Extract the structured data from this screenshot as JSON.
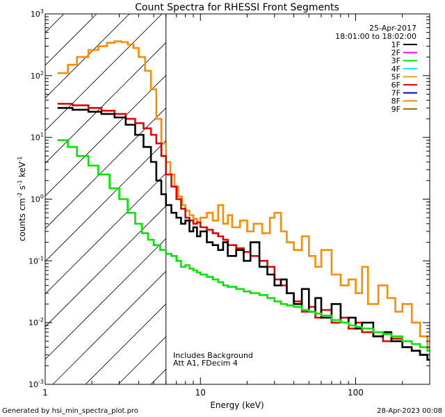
{
  "chart_data": {
    "type": "line",
    "title": "Count Spectra for RHESSI Front Segments",
    "xlabel": "Energy (keV)",
    "ylabel_parts": [
      "counts cm",
      "-2",
      " s",
      "-1",
      " keV",
      "-1"
    ],
    "xscale": "log",
    "yscale": "log",
    "xlim": [
      1,
      300
    ],
    "ylim": [
      0.001,
      1000
    ],
    "x_tick_labels": [
      {
        "value": 1,
        "label": "1"
      },
      {
        "value": 10,
        "label": "10"
      },
      {
        "value": 100,
        "label": "100"
      }
    ],
    "y_tick_labels": [
      {
        "exp": -3,
        "base": "10",
        "sup": "-3"
      },
      {
        "exp": -2,
        "base": "10",
        "sup": "-2"
      },
      {
        "exp": -1,
        "base": "10",
        "sup": "-1"
      },
      {
        "exp": 0,
        "base": "10",
        "sup": "0"
      },
      {
        "exp": 1,
        "base": "10",
        "sup": "1"
      },
      {
        "exp": 2,
        "base": "10",
        "sup": "2"
      },
      {
        "exp": 3,
        "base": "10",
        "sup": "3"
      }
    ],
    "date": "25-Apr-2017",
    "time_range": "18:01:00 to 18:02:00",
    "legend_position": "top-right",
    "legend": [
      {
        "name": "1F",
        "color": "#000000"
      },
      {
        "name": "2F",
        "color": "#ff00ff"
      },
      {
        "name": "3F",
        "color": "#00e600"
      },
      {
        "name": "4F",
        "color": "#00e5ee"
      },
      {
        "name": "5F",
        "color": "#f0a020"
      },
      {
        "name": "6F",
        "color": "#e60000"
      },
      {
        "name": "7F",
        "color": "#0000cc"
      },
      {
        "name": "8F",
        "color": "#ff8c00"
      },
      {
        "name": "9F",
        "color": "#807000"
      }
    ],
    "cutoff_energy": 6,
    "hatch_region": "energies below 6 keV",
    "annotations": [
      "Includes Background",
      "Att A1, FDecim 4"
    ],
    "series": [
      {
        "name": "8F",
        "color": "#ff8c00",
        "x": [
          1.2,
          1.4,
          1.6,
          1.9,
          2.2,
          2.5,
          2.8,
          3.1,
          3.4,
          3.7,
          4.0,
          4.4,
          4.8,
          5.2,
          5.6,
          6.0,
          6.4,
          6.8,
          7.2,
          7.6,
          8.0,
          8.5,
          9,
          9.5,
          10,
          11,
          12,
          13,
          14,
          15,
          16,
          18,
          20,
          22,
          25,
          28,
          30,
          33,
          36,
          40,
          45,
          50,
          55,
          60,
          70,
          80,
          90,
          100,
          110,
          120,
          140,
          160,
          180,
          200,
          230,
          260,
          290
        ],
        "y": [
          110,
          150,
          200,
          260,
          300,
          340,
          360,
          350,
          320,
          280,
          200,
          120,
          60,
          20,
          8,
          4.0,
          2.5,
          1.6,
          1.1,
          0.8,
          0.65,
          0.55,
          0.48,
          0.42,
          0.5,
          0.6,
          0.45,
          0.8,
          0.4,
          0.55,
          0.35,
          0.45,
          0.3,
          0.4,
          0.28,
          0.5,
          0.6,
          0.3,
          0.2,
          0.15,
          0.25,
          0.12,
          0.08,
          0.15,
          0.06,
          0.04,
          0.05,
          0.03,
          0.08,
          0.02,
          0.04,
          0.025,
          0.015,
          0.02,
          0.01,
          0.006,
          0.004
        ]
      },
      {
        "name": "6F",
        "color": "#e60000",
        "x": [
          1.2,
          1.5,
          1.9,
          2.3,
          2.8,
          3.3,
          3.8,
          4.3,
          4.8,
          5.2,
          5.6,
          6.0,
          6.5,
          7,
          7.5,
          8,
          8.5,
          9,
          9.5,
          10,
          11,
          12,
          13,
          14,
          15,
          17,
          19,
          21,
          24,
          27,
          30,
          33,
          36,
          40,
          45,
          50,
          55,
          60,
          70,
          80,
          90,
          100,
          110,
          130,
          150,
          170,
          200,
          230,
          260,
          290
        ],
        "y": [
          35,
          33,
          30,
          27,
          24,
          20,
          17,
          14,
          11,
          8,
          5,
          2.5,
          1.6,
          1.0,
          0.7,
          0.5,
          0.45,
          0.4,
          0.42,
          0.35,
          0.32,
          0.28,
          0.25,
          0.22,
          0.18,
          0.16,
          0.14,
          0.12,
          0.1,
          0.08,
          0.05,
          0.04,
          0.03,
          0.022,
          0.015,
          0.018,
          0.012,
          0.016,
          0.01,
          0.012,
          0.008,
          0.01,
          0.007,
          0.006,
          0.005,
          0.0055,
          0.004,
          0.0035,
          0.003,
          0.0025
        ]
      },
      {
        "name": "1F",
        "color": "#000000",
        "x": [
          1.2,
          1.5,
          1.9,
          2.3,
          2.8,
          3.3,
          3.8,
          4.3,
          4.8,
          5.2,
          5.6,
          6.0,
          6.5,
          7,
          7.5,
          8,
          8.5,
          9,
          9.5,
          10,
          11,
          12,
          13,
          14,
          15,
          17,
          19,
          21,
          24,
          27,
          30,
          33,
          36,
          40,
          45,
          50,
          55,
          60,
          70,
          80,
          90,
          100,
          110,
          130,
          150,
          170,
          200,
          230,
          260,
          290
        ],
        "y": [
          30,
          28,
          26,
          24,
          21,
          16,
          11,
          7,
          4,
          2.0,
          1.2,
          0.8,
          0.6,
          0.5,
          0.4,
          0.45,
          0.3,
          0.35,
          0.25,
          0.3,
          0.2,
          0.18,
          0.15,
          0.2,
          0.12,
          0.15,
          0.1,
          0.2,
          0.08,
          0.06,
          0.04,
          0.05,
          0.03,
          0.02,
          0.035,
          0.015,
          0.025,
          0.012,
          0.02,
          0.01,
          0.012,
          0.008,
          0.01,
          0.006,
          0.007,
          0.005,
          0.004,
          0.0035,
          0.003,
          0.0025
        ]
      },
      {
        "name": "3F",
        "color": "#00e600",
        "x": [
          1.2,
          1.4,
          1.6,
          1.9,
          2.2,
          2.6,
          3.0,
          3.4,
          3.8,
          4.2,
          4.6,
          5.0,
          5.5,
          6.0,
          6.5,
          7,
          7.5,
          8,
          8.5,
          9,
          9.5,
          10,
          11,
          12,
          13,
          14,
          15,
          17,
          19,
          21,
          24,
          27,
          30,
          33,
          36,
          40,
          45,
          50,
          55,
          60,
          70,
          80,
          90,
          100,
          110,
          130,
          150,
          170,
          200,
          230,
          260,
          290
        ],
        "y": [
          9,
          7,
          5,
          3.5,
          2.5,
          1.5,
          1.0,
          0.6,
          0.4,
          0.28,
          0.22,
          0.18,
          0.15,
          0.13,
          0.12,
          0.1,
          0.08,
          0.085,
          0.075,
          0.07,
          0.065,
          0.06,
          0.055,
          0.05,
          0.045,
          0.04,
          0.038,
          0.035,
          0.032,
          0.03,
          0.028,
          0.025,
          0.022,
          0.02,
          0.019,
          0.018,
          0.016,
          0.015,
          0.014,
          0.013,
          0.011,
          0.01,
          0.009,
          0.0085,
          0.008,
          0.007,
          0.0065,
          0.006,
          0.005,
          0.0045,
          0.004,
          0.0035
        ]
      }
    ]
  },
  "footer": {
    "generated_by": "Generated by hsi_min_spectra_plot.pro",
    "timestamp": "28-Apr-2023 00:08"
  }
}
